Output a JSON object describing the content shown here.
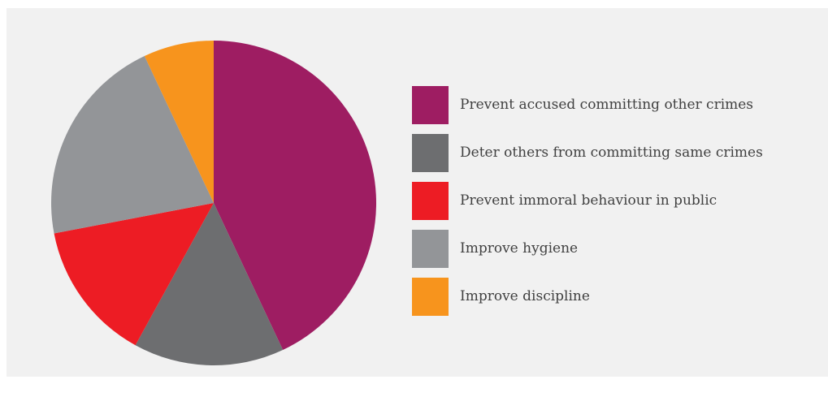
{
  "chart_data": {
    "type": "pie",
    "title": "",
    "slices": [
      {
        "label": "Prevent accused committing other crimes",
        "value": 43,
        "color": "#9e1d62"
      },
      {
        "label": "Deter others from committing same crimes",
        "value": 15,
        "color": "#6d6e70"
      },
      {
        "label": "Prevent immoral behaviour in public",
        "value": 14,
        "color": "#ed1c24"
      },
      {
        "label": "Improve hygiene",
        "value": 21,
        "color": "#939598"
      },
      {
        "label": "Improve discipline",
        "value": 7,
        "color": "#f7941d"
      }
    ],
    "legend_position": "right",
    "start_angle_deg": 0,
    "direction": "clockwise"
  }
}
